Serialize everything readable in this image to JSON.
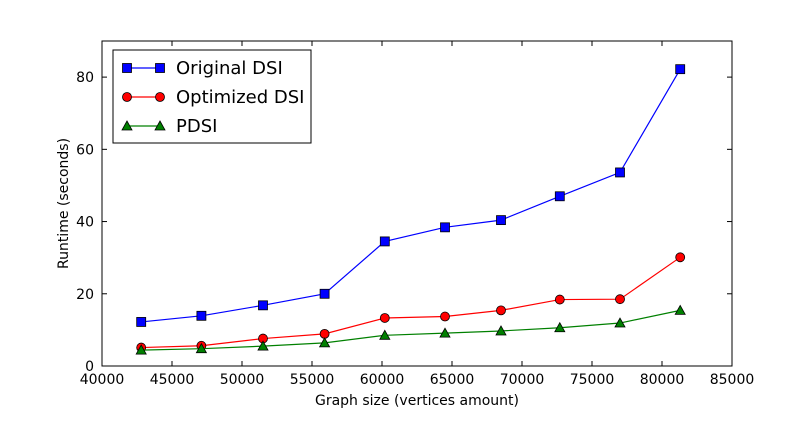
{
  "chart_data": {
    "type": "line",
    "title": "",
    "xlabel": "Graph size (vertices amount)",
    "ylabel": "Runtime (seconds)",
    "xlim": [
      40000,
      85000
    ],
    "ylim": [
      0,
      90
    ],
    "xticks": [
      40000,
      45000,
      50000,
      55000,
      60000,
      65000,
      70000,
      75000,
      80000,
      85000
    ],
    "yticks": [
      0,
      20,
      40,
      60,
      80
    ],
    "grid": false,
    "legend_position": "top-left",
    "x": [
      42800,
      47100,
      51500,
      55900,
      60200,
      64500,
      68500,
      72700,
      77000,
      81300
    ],
    "series": [
      {
        "name": "Original DSI",
        "color": "#0000ff",
        "marker": "square",
        "values": [
          12.2,
          13.9,
          16.8,
          20.0,
          34.5,
          38.4,
          40.4,
          47.0,
          53.6,
          82.2
        ]
      },
      {
        "name": "Optimized DSI",
        "color": "#ff0000",
        "marker": "circle",
        "values": [
          5.1,
          5.6,
          7.6,
          8.9,
          13.3,
          13.7,
          15.4,
          18.4,
          18.5,
          30.1
        ]
      },
      {
        "name": "PDSI",
        "color": "#008000",
        "marker": "triangle",
        "values": [
          4.4,
          4.8,
          5.5,
          6.4,
          8.5,
          9.1,
          9.7,
          10.6,
          11.9,
          15.4
        ]
      }
    ]
  }
}
